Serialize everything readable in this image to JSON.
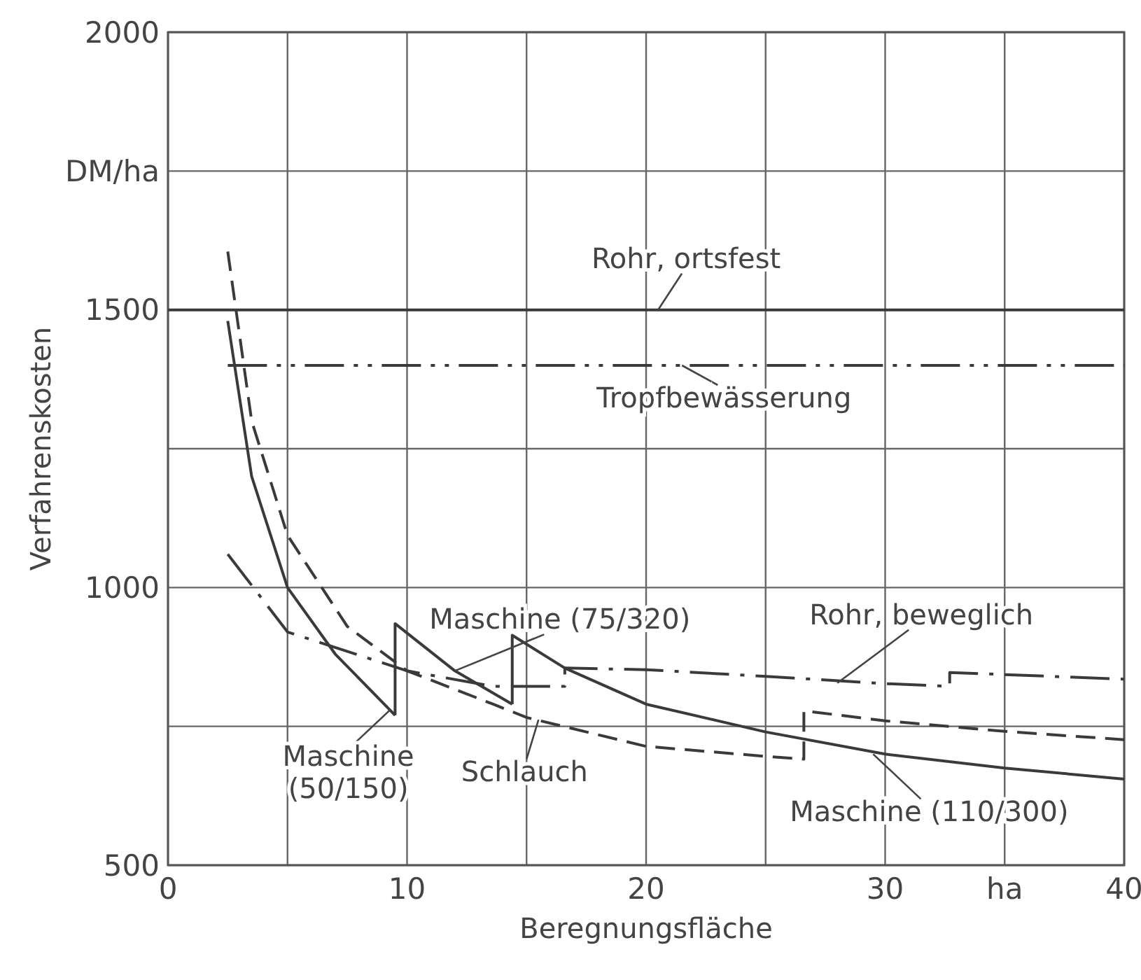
{
  "chart_data": {
    "type": "line",
    "xlabel": "Beregnungsfläche",
    "ylabel": "Verfahrenskosten",
    "xlim": [
      0,
      40
    ],
    "ylim": [
      500,
      2000
    ],
    "xticks": [
      0,
      {
        "value": 5,
        "label": null
      },
      10,
      {
        "value": 15,
        "label": null
      },
      20,
      {
        "value": 25,
        "label": null
      },
      30,
      {
        "value": 35,
        "label": "ha"
      },
      40
    ],
    "yticks": [
      500,
      {
        "value": 750,
        "label": null
      },
      1000,
      {
        "value": 1250,
        "label": null
      },
      1500,
      {
        "value": 1750,
        "label": "DM/ha"
      },
      2000
    ],
    "grid": true,
    "marker": "none",
    "series": [
      {
        "color": "#3a3a3a",
        "line_style": "solid",
        "x": [
          0,
          40
        ],
        "values": [
          1500,
          1500
        ]
      },
      {
        "color": "#3a3a3a",
        "line_style": "dashdotdot",
        "x": [
          2.5,
          40
        ],
        "values": [
          1400,
          1400
        ]
      },
      {
        "color": "#3a3a3a",
        "line_style": "dashed",
        "x": [
          2.5,
          3.5,
          5,
          7.5,
          10,
          13.6,
          15,
          20,
          25,
          26.6,
          26.6,
          30,
          35,
          40
        ],
        "values": [
          1605,
          1300,
          1094,
          930,
          850,
          790,
          766,
          714,
          696,
          691,
          778,
          760,
          741,
          726
        ]
      },
      {
        "color": "#3a3a3a",
        "line_style": "dashdot",
        "x": [
          2.5,
          5,
          10,
          13.6,
          16.6,
          16.6,
          20,
          25,
          30,
          32.7,
          32.7,
          40
        ],
        "values": [
          1060,
          920,
          850,
          822,
          822,
          855,
          852,
          840,
          827,
          822,
          847,
          835
        ]
      },
      {
        "color": "#3a3a3a",
        "line_style": "solid",
        "x": [
          2.5,
          3.5,
          5,
          7,
          9.5
        ],
        "values": [
          1480,
          1200,
          1000,
          880,
          770
        ]
      },
      {
        "color": "#3a3a3a",
        "line_style": "solid",
        "x": [
          9.5,
          9.5,
          12,
          14.4
        ],
        "values": [
          770,
          935,
          850,
          790
        ]
      },
      {
        "color": "#3a3a3a",
        "line_style": "solid",
        "x": [
          14.4,
          14.4,
          16.6,
          20,
          25,
          30,
          35,
          40
        ],
        "values": [
          790,
          914,
          855,
          790,
          740,
          700,
          675,
          655
        ]
      }
    ],
    "annotations": [
      {
        "text": "Rohr, ortsfest",
        "x": 20.5,
        "y": 1500
      },
      {
        "text": "Tropfbewässerung",
        "x": 21.5,
        "y": 1400
      },
      {
        "text": "Maschine (75/320)",
        "x": 12,
        "y": 850
      },
      {
        "text": "Rohr, beweglich",
        "x": 28,
        "y": 828
      },
      {
        "text": "Maschine (50/150)",
        "x": 9.3,
        "y": 780
      },
      {
        "text": "Schlauch",
        "x": 15.5,
        "y": 762
      },
      {
        "text": "Maschine (110/300)",
        "x": 29.5,
        "y": 700
      }
    ]
  }
}
